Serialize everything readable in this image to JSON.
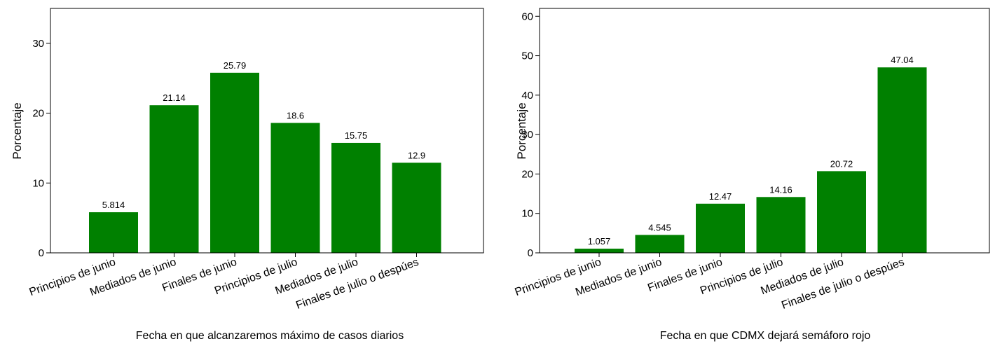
{
  "chart_data": [
    {
      "type": "bar",
      "categories": [
        "Principios de junio",
        "Mediados de junio",
        "Finales de junio",
        "Principios de julio",
        "Mediados de julio",
        "Finales de julio o despúes"
      ],
      "values": [
        5.814,
        21.14,
        25.79,
        18.6,
        15.75,
        12.9
      ],
      "value_labels": [
        "5.814",
        "21.14",
        "25.79",
        "18.6",
        "15.75",
        "12.9"
      ],
      "title": "",
      "xlabel": "Fecha en que alcanzaremos máximo de casos diarios",
      "ylabel": "Porcentaje",
      "ylim": [
        0,
        35
      ],
      "yticks": [
        0,
        10,
        20,
        30
      ],
      "bar_color": "#008000",
      "grid": false,
      "legend": "none"
    },
    {
      "type": "bar",
      "categories": [
        "Principios de junio",
        "Mediados de junio",
        "Finales de junio",
        "Principios de julio",
        "Mediados de julio",
        "Finales de julio o despúes"
      ],
      "values": [
        1.057,
        4.545,
        12.47,
        14.16,
        20.72,
        47.04
      ],
      "value_labels": [
        "1.057",
        "4.545",
        "12.47",
        "14.16",
        "20.72",
        "47.04"
      ],
      "title": "",
      "xlabel": "Fecha en que CDMX dejará semáforo rojo",
      "ylabel": "Porcentaje",
      "ylim": [
        0,
        62
      ],
      "yticks": [
        0,
        10,
        20,
        30,
        40,
        50,
        60
      ],
      "bar_color": "#008000",
      "grid": false,
      "legend": "none"
    }
  ]
}
